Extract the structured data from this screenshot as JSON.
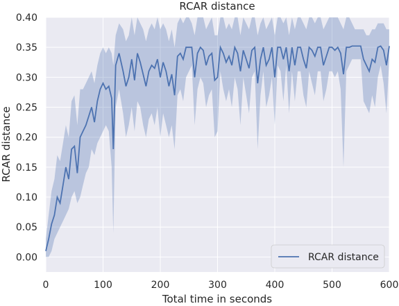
{
  "chart_data": {
    "type": "line",
    "title": "RCAR distance",
    "xlabel": "Total time in seconds",
    "ylabel": "RCAR distance",
    "xlim": [
      0,
      600
    ],
    "ylim": [
      -0.025,
      0.4
    ],
    "xticks": [
      0,
      100,
      200,
      300,
      400,
      500,
      600
    ],
    "xtick_labels": [
      "0",
      "100",
      "200",
      "300",
      "400",
      "500",
      "600"
    ],
    "yticks": [
      0.0,
      0.05,
      0.1,
      0.15,
      0.2,
      0.25,
      0.3,
      0.35,
      0.4
    ],
    "ytick_labels": [
      "0.00",
      "0.05",
      "0.10",
      "0.15",
      "0.20",
      "0.25",
      "0.30",
      "0.35",
      "0.40"
    ],
    "grid": true,
    "legend": {
      "position": "lower-right",
      "label": "RCAR distance"
    },
    "colors": {
      "line": "#4c72b0",
      "band": "#4c72b0",
      "background": "#eaeaf2",
      "grid": "#ffffff"
    },
    "series": [
      {
        "name": "RCAR distance",
        "x": [
          0,
          5,
          10,
          15,
          20,
          25,
          30,
          35,
          40,
          45,
          50,
          55,
          60,
          65,
          70,
          75,
          80,
          85,
          90,
          95,
          100,
          105,
          110,
          115,
          118,
          122,
          128,
          135,
          140,
          145,
          150,
          155,
          160,
          165,
          170,
          175,
          180,
          185,
          190,
          195,
          200,
          205,
          210,
          215,
          220,
          225,
          230,
          235,
          240,
          245,
          250,
          255,
          260,
          265,
          270,
          275,
          280,
          285,
          290,
          295,
          300,
          305,
          310,
          315,
          320,
          325,
          330,
          335,
          340,
          345,
          350,
          355,
          360,
          365,
          370,
          375,
          380,
          385,
          390,
          395,
          400,
          405,
          410,
          415,
          420,
          425,
          430,
          435,
          440,
          445,
          450,
          455,
          460,
          465,
          470,
          475,
          480,
          485,
          490,
          495,
          500,
          505,
          510,
          515,
          520,
          525,
          530,
          535,
          540,
          545,
          550,
          555,
          560,
          565,
          570,
          575,
          580,
          585,
          590,
          595,
          600
        ],
        "y": [
          0.01,
          0.03,
          0.055,
          0.07,
          0.1,
          0.09,
          0.12,
          0.15,
          0.13,
          0.18,
          0.185,
          0.14,
          0.2,
          0.21,
          0.22,
          0.235,
          0.25,
          0.225,
          0.26,
          0.28,
          0.29,
          0.28,
          0.285,
          0.265,
          0.18,
          0.32,
          0.34,
          0.31,
          0.285,
          0.3,
          0.33,
          0.295,
          0.34,
          0.325,
          0.305,
          0.285,
          0.31,
          0.32,
          0.315,
          0.33,
          0.3,
          0.325,
          0.31,
          0.285,
          0.305,
          0.27,
          0.335,
          0.34,
          0.33,
          0.35,
          0.35,
          0.35,
          0.3,
          0.34,
          0.35,
          0.345,
          0.32,
          0.335,
          0.34,
          0.295,
          0.3,
          0.35,
          0.34,
          0.325,
          0.335,
          0.32,
          0.35,
          0.34,
          0.31,
          0.345,
          0.33,
          0.315,
          0.345,
          0.35,
          0.29,
          0.33,
          0.35,
          0.32,
          0.33,
          0.35,
          0.3,
          0.35,
          0.35,
          0.33,
          0.35,
          0.31,
          0.35,
          0.32,
          0.35,
          0.35,
          0.33,
          0.315,
          0.35,
          0.345,
          0.335,
          0.35,
          0.35,
          0.32,
          0.335,
          0.35,
          0.35,
          0.345,
          0.35,
          0.34,
          0.305,
          0.35,
          0.35,
          0.352,
          0.352,
          0.352,
          0.352,
          0.33,
          0.32,
          0.31,
          0.33,
          0.325,
          0.35,
          0.352,
          0.345,
          0.32,
          0.352
        ],
        "lower": [
          0.0,
          0.0,
          0.01,
          0.03,
          0.04,
          0.05,
          0.06,
          0.07,
          0.08,
          0.1,
          0.11,
          0.09,
          0.1,
          0.12,
          0.14,
          0.15,
          0.18,
          0.17,
          0.19,
          0.2,
          0.21,
          0.22,
          0.21,
          0.15,
          0.04,
          0.25,
          0.28,
          0.24,
          0.2,
          0.22,
          0.25,
          0.21,
          0.26,
          0.25,
          0.22,
          0.2,
          0.23,
          0.24,
          0.22,
          0.25,
          0.2,
          0.24,
          0.22,
          0.2,
          0.22,
          0.18,
          0.27,
          0.28,
          0.26,
          0.3,
          0.31,
          0.32,
          0.22,
          0.28,
          0.3,
          0.29,
          0.25,
          0.27,
          0.28,
          0.2,
          0.21,
          0.31,
          0.28,
          0.26,
          0.28,
          0.25,
          0.3,
          0.28,
          0.22,
          0.3,
          0.27,
          0.24,
          0.3,
          0.31,
          0.18,
          0.27,
          0.31,
          0.25,
          0.27,
          0.3,
          0.22,
          0.32,
          0.31,
          0.26,
          0.32,
          0.24,
          0.31,
          0.26,
          0.31,
          0.31,
          0.27,
          0.25,
          0.31,
          0.29,
          0.27,
          0.31,
          0.31,
          0.26,
          0.28,
          0.31,
          0.31,
          0.3,
          0.31,
          0.28,
          0.15,
          0.31,
          0.32,
          0.33,
          0.33,
          0.33,
          0.33,
          0.26,
          0.25,
          0.24,
          0.27,
          0.25,
          0.3,
          0.32,
          0.29,
          0.24,
          0.33
        ],
        "upper": [
          0.03,
          0.07,
          0.11,
          0.13,
          0.17,
          0.16,
          0.19,
          0.22,
          0.2,
          0.26,
          0.27,
          0.22,
          0.28,
          0.28,
          0.29,
          0.3,
          0.31,
          0.29,
          0.32,
          0.34,
          0.35,
          0.34,
          0.35,
          0.34,
          0.32,
          0.37,
          0.39,
          0.38,
          0.36,
          0.37,
          0.4,
          0.37,
          0.4,
          0.39,
          0.38,
          0.36,
          0.38,
          0.39,
          0.38,
          0.4,
          0.38,
          0.39,
          0.38,
          0.36,
          0.38,
          0.35,
          0.39,
          0.4,
          0.39,
          0.4,
          0.4,
          0.39,
          0.37,
          0.4,
          0.4,
          0.4,
          0.38,
          0.39,
          0.4,
          0.37,
          0.37,
          0.4,
          0.4,
          0.38,
          0.39,
          0.38,
          0.4,
          0.4,
          0.37,
          0.4,
          0.39,
          0.38,
          0.4,
          0.4,
          0.37,
          0.39,
          0.4,
          0.38,
          0.39,
          0.4,
          0.37,
          0.4,
          0.4,
          0.39,
          0.4,
          0.37,
          0.4,
          0.38,
          0.4,
          0.4,
          0.39,
          0.38,
          0.4,
          0.4,
          0.39,
          0.4,
          0.4,
          0.38,
          0.39,
          0.4,
          0.4,
          0.4,
          0.4,
          0.39,
          0.38,
          0.4,
          0.4,
          0.39,
          0.38,
          0.38,
          0.38,
          0.38,
          0.37,
          0.37,
          0.38,
          0.38,
          0.39,
          0.39,
          0.39,
          0.38,
          0.38
        ]
      }
    ]
  }
}
